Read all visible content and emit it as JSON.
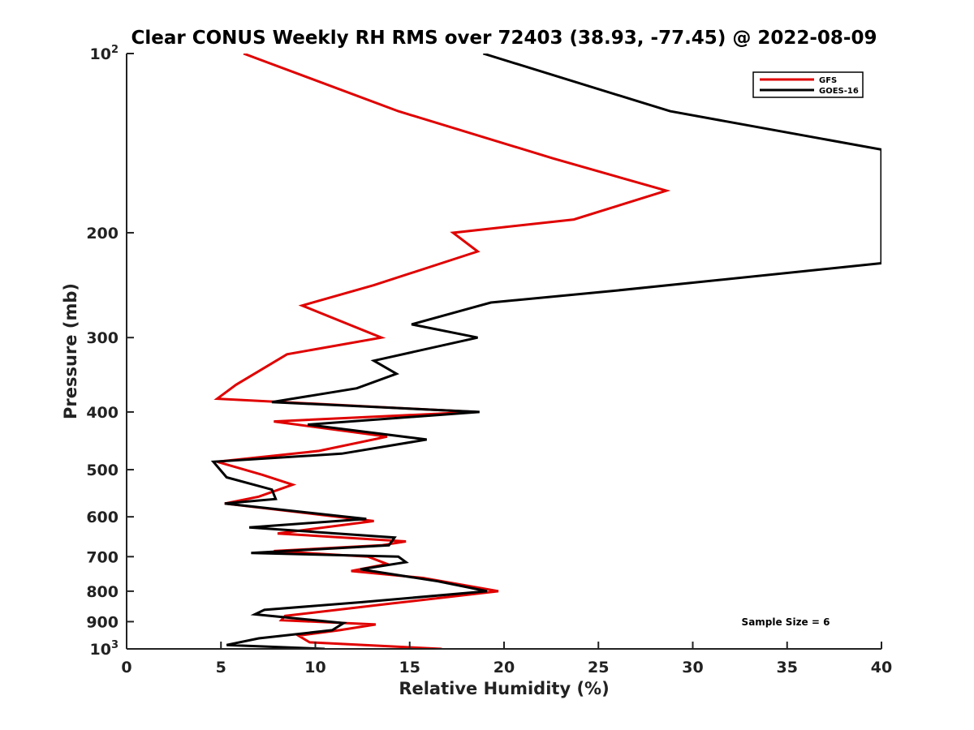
{
  "chart_data": {
    "type": "line",
    "title": "Clear CONUS Weekly RH RMS over 72403 (38.93, -77.45) @ 2022-08-09",
    "xlabel": "Relative Humidity (%)",
    "ylabel": "Pressure (mb)",
    "xlim": [
      0,
      40
    ],
    "ylim": [
      100,
      1000
    ],
    "y_scale": "log",
    "y_reversed": true,
    "grid": false,
    "legend_position": "top-right",
    "x_ticks": [
      "0",
      "5",
      "10",
      "15",
      "20",
      "25",
      "30",
      "35",
      "40"
    ],
    "y_ticks": [
      {
        "value": 100,
        "base": "10",
        "exp": "2"
      },
      {
        "value": 200,
        "base": "200",
        "exp": ""
      },
      {
        "value": 300,
        "base": "300",
        "exp": ""
      },
      {
        "value": 400,
        "base": "400",
        "exp": ""
      },
      {
        "value": 500,
        "base": "500",
        "exp": ""
      },
      {
        "value": 600,
        "base": "600",
        "exp": ""
      },
      {
        "value": 700,
        "base": "700",
        "exp": ""
      },
      {
        "value": 800,
        "base": "800",
        "exp": ""
      },
      {
        "value": 900,
        "base": "900",
        "exp": ""
      },
      {
        "value": 1000,
        "base": "10",
        "exp": "3"
      }
    ],
    "annotation": "Sample Size = 6",
    "series": [
      {
        "name": "GFS",
        "color": "#e00000",
        "points": [
          [
            6.2,
            100
          ],
          [
            14.4,
            125
          ],
          [
            22.6,
            150
          ],
          [
            28.6,
            170
          ],
          [
            23.7,
            190
          ],
          [
            17.3,
            200
          ],
          [
            18.6,
            215
          ],
          [
            13.1,
            245
          ],
          [
            9.3,
            265
          ],
          [
            13.5,
            300
          ],
          [
            8.5,
            320
          ],
          [
            5.8,
            360
          ],
          [
            4.8,
            380
          ],
          [
            18.5,
            400
          ],
          [
            7.8,
            415
          ],
          [
            13.8,
            440
          ],
          [
            10.2,
            465
          ],
          [
            4.8,
            485
          ],
          [
            7.2,
            510
          ],
          [
            8.8,
            530
          ],
          [
            7.0,
            555
          ],
          [
            5.2,
            570
          ],
          [
            13.1,
            610
          ],
          [
            8.0,
            640
          ],
          [
            14.8,
            660
          ],
          [
            13.5,
            670
          ],
          [
            7.8,
            685
          ],
          [
            12.8,
            700
          ],
          [
            13.8,
            720
          ],
          [
            11.9,
            740
          ],
          [
            15.7,
            760
          ],
          [
            19.7,
            800
          ],
          [
            13.9,
            840
          ],
          [
            8.4,
            880
          ],
          [
            8.2,
            895
          ],
          [
            13.2,
            910
          ],
          [
            11.3,
            930
          ],
          [
            9.1,
            950
          ],
          [
            9.7,
            975
          ],
          [
            16.7,
            1000
          ]
        ]
      },
      {
        "name": "GOES-16",
        "color": "#000000",
        "points": [
          [
            18.9,
            100
          ],
          [
            28.8,
            125
          ],
          [
            40.0,
            145
          ],
          [
            40.0,
            225
          ],
          [
            26.0,
            250
          ],
          [
            19.3,
            262
          ],
          [
            15.1,
            285
          ],
          [
            18.6,
            300
          ],
          [
            13.1,
            328
          ],
          [
            14.3,
            345
          ],
          [
            12.2,
            365
          ],
          [
            7.7,
            385
          ],
          [
            18.7,
            400
          ],
          [
            9.6,
            420
          ],
          [
            15.9,
            445
          ],
          [
            11.4,
            470
          ],
          [
            4.6,
            485
          ],
          [
            5.3,
            515
          ],
          [
            7.7,
            540
          ],
          [
            7.9,
            560
          ],
          [
            5.2,
            570
          ],
          [
            12.7,
            605
          ],
          [
            6.5,
            625
          ],
          [
            14.2,
            650
          ],
          [
            13.9,
            670
          ],
          [
            6.6,
            690
          ],
          [
            14.4,
            700
          ],
          [
            14.8,
            715
          ],
          [
            12.4,
            735
          ],
          [
            16.5,
            770
          ],
          [
            19.1,
            800
          ],
          [
            12.4,
            835
          ],
          [
            7.3,
            860
          ],
          [
            6.8,
            875
          ],
          [
            11.5,
            905
          ],
          [
            10.9,
            930
          ],
          [
            7.0,
            960
          ],
          [
            5.3,
            985
          ],
          [
            10.5,
            1000
          ]
        ]
      }
    ]
  }
}
